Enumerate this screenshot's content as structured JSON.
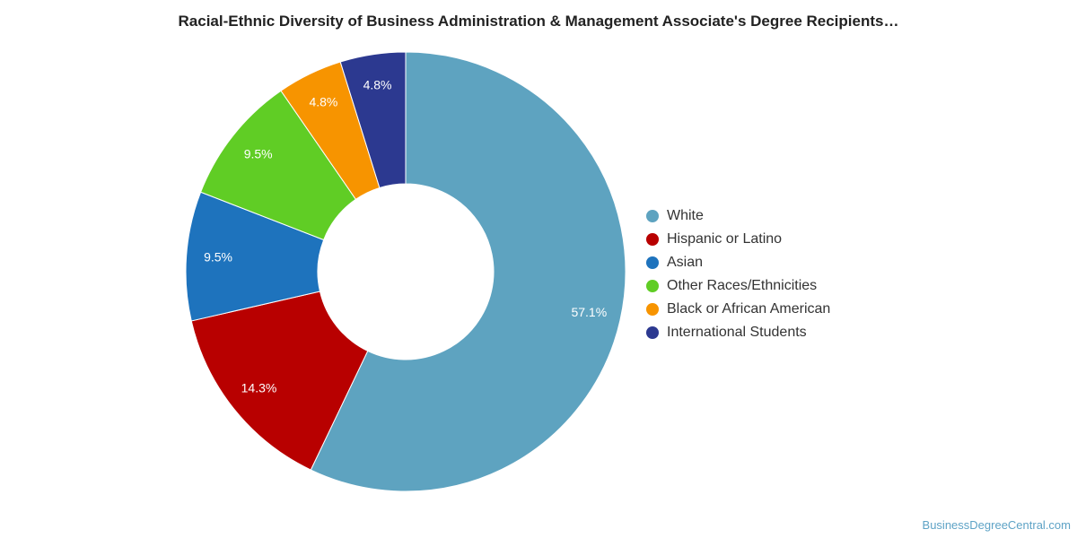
{
  "chart_data": {
    "type": "pie",
    "title": "Racial-Ethnic Diversity of Business Administration & Management Associate's Degree Recipients…",
    "categories": [
      "White",
      "Hispanic or Latino",
      "Asian",
      "Other Races/Ethnicities",
      "Black or African American",
      "International Students"
    ],
    "values": [
      57.1,
      14.3,
      9.5,
      9.5,
      4.8,
      4.8
    ],
    "labels": [
      "57.1%",
      "14.3%",
      "9.5%",
      "9.5%",
      "4.8%",
      "4.8%"
    ],
    "colors": [
      "#5ea3c0",
      "#b80000",
      "#1e73bd",
      "#60cd25",
      "#f79400",
      "#2c3990"
    ],
    "donut": true,
    "legend_position": "right"
  },
  "watermark": "BusinessDegreeCentral.com"
}
